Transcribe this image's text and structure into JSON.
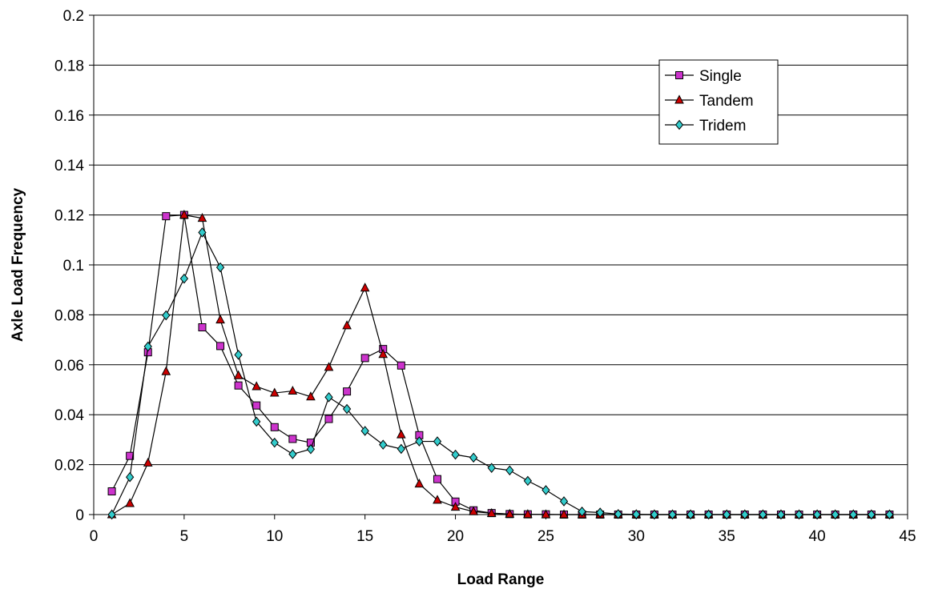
{
  "chart_data": {
    "type": "line",
    "title": "",
    "xlabel": "Load Range",
    "ylabel": "Axle Load Frequency",
    "xlim": [
      0,
      45
    ],
    "ylim": [
      0,
      0.2
    ],
    "xticks": [
      "0",
      "5",
      "10",
      "15",
      "20",
      "25",
      "30",
      "35",
      "40",
      "45"
    ],
    "yticks": [
      "0",
      "0.02",
      "0.04",
      "0.06",
      "0.08",
      "0.1",
      "0.12",
      "0.14",
      "0.16",
      "0.18",
      "0.2"
    ],
    "grid": "horizontal",
    "legend_position": "top-right",
    "x": [
      1,
      2,
      3,
      4,
      5,
      6,
      7,
      8,
      9,
      10,
      11,
      12,
      13,
      14,
      15,
      16,
      17,
      18,
      19,
      20,
      21,
      22,
      23,
      24,
      25,
      26,
      27,
      28,
      29,
      30,
      31,
      32,
      33,
      34,
      35,
      36,
      37,
      38,
      39,
      40,
      41,
      42,
      43,
      44
    ],
    "series": [
      {
        "name": "Single",
        "marker": "square",
        "color": "#cc33cc",
        "values": [
          0.0093,
          0.0235,
          0.065,
          0.1195,
          0.12,
          0.075,
          0.0675,
          0.0517,
          0.0437,
          0.035,
          0.0303,
          0.0288,
          0.0383,
          0.0493,
          0.0627,
          0.0663,
          0.0597,
          0.0318,
          0.0142,
          0.0052,
          0.0017,
          0.0006,
          0.0002,
          0.0001,
          0.0001,
          0,
          0,
          0,
          0,
          0,
          0,
          0,
          0,
          0,
          0,
          0,
          0,
          0,
          0,
          0,
          0,
          0,
          0,
          0
        ]
      },
      {
        "name": "Tandem",
        "marker": "triangle",
        "color": "#cc0000",
        "values": [
          0,
          0.0045,
          0.0207,
          0.0573,
          0.12,
          0.1187,
          0.078,
          0.0557,
          0.0513,
          0.0487,
          0.0495,
          0.0472,
          0.059,
          0.0757,
          0.0908,
          0.0642,
          0.032,
          0.0123,
          0.0058,
          0.003,
          0.0012,
          0.0005,
          0.0002,
          0.0001,
          0,
          0,
          0,
          0,
          0,
          0,
          0,
          0,
          0,
          0,
          0,
          0,
          0,
          0,
          0,
          0,
          0,
          0,
          0,
          0
        ]
      },
      {
        "name": "Tridem",
        "marker": "diamond",
        "color": "#33cccc",
        "values": [
          0,
          0.015,
          0.0673,
          0.0798,
          0.0945,
          0.113,
          0.099,
          0.064,
          0.0372,
          0.0288,
          0.0242,
          0.0262,
          0.047,
          0.0423,
          0.0335,
          0.028,
          0.0263,
          0.0293,
          0.0293,
          0.024,
          0.0228,
          0.0187,
          0.0177,
          0.0135,
          0.0098,
          0.0053,
          0.0012,
          0.0008,
          0.0002,
          0.0001,
          0,
          0,
          0,
          0,
          0,
          0,
          0,
          0,
          0,
          0,
          0,
          0,
          0,
          0
        ]
      }
    ]
  }
}
